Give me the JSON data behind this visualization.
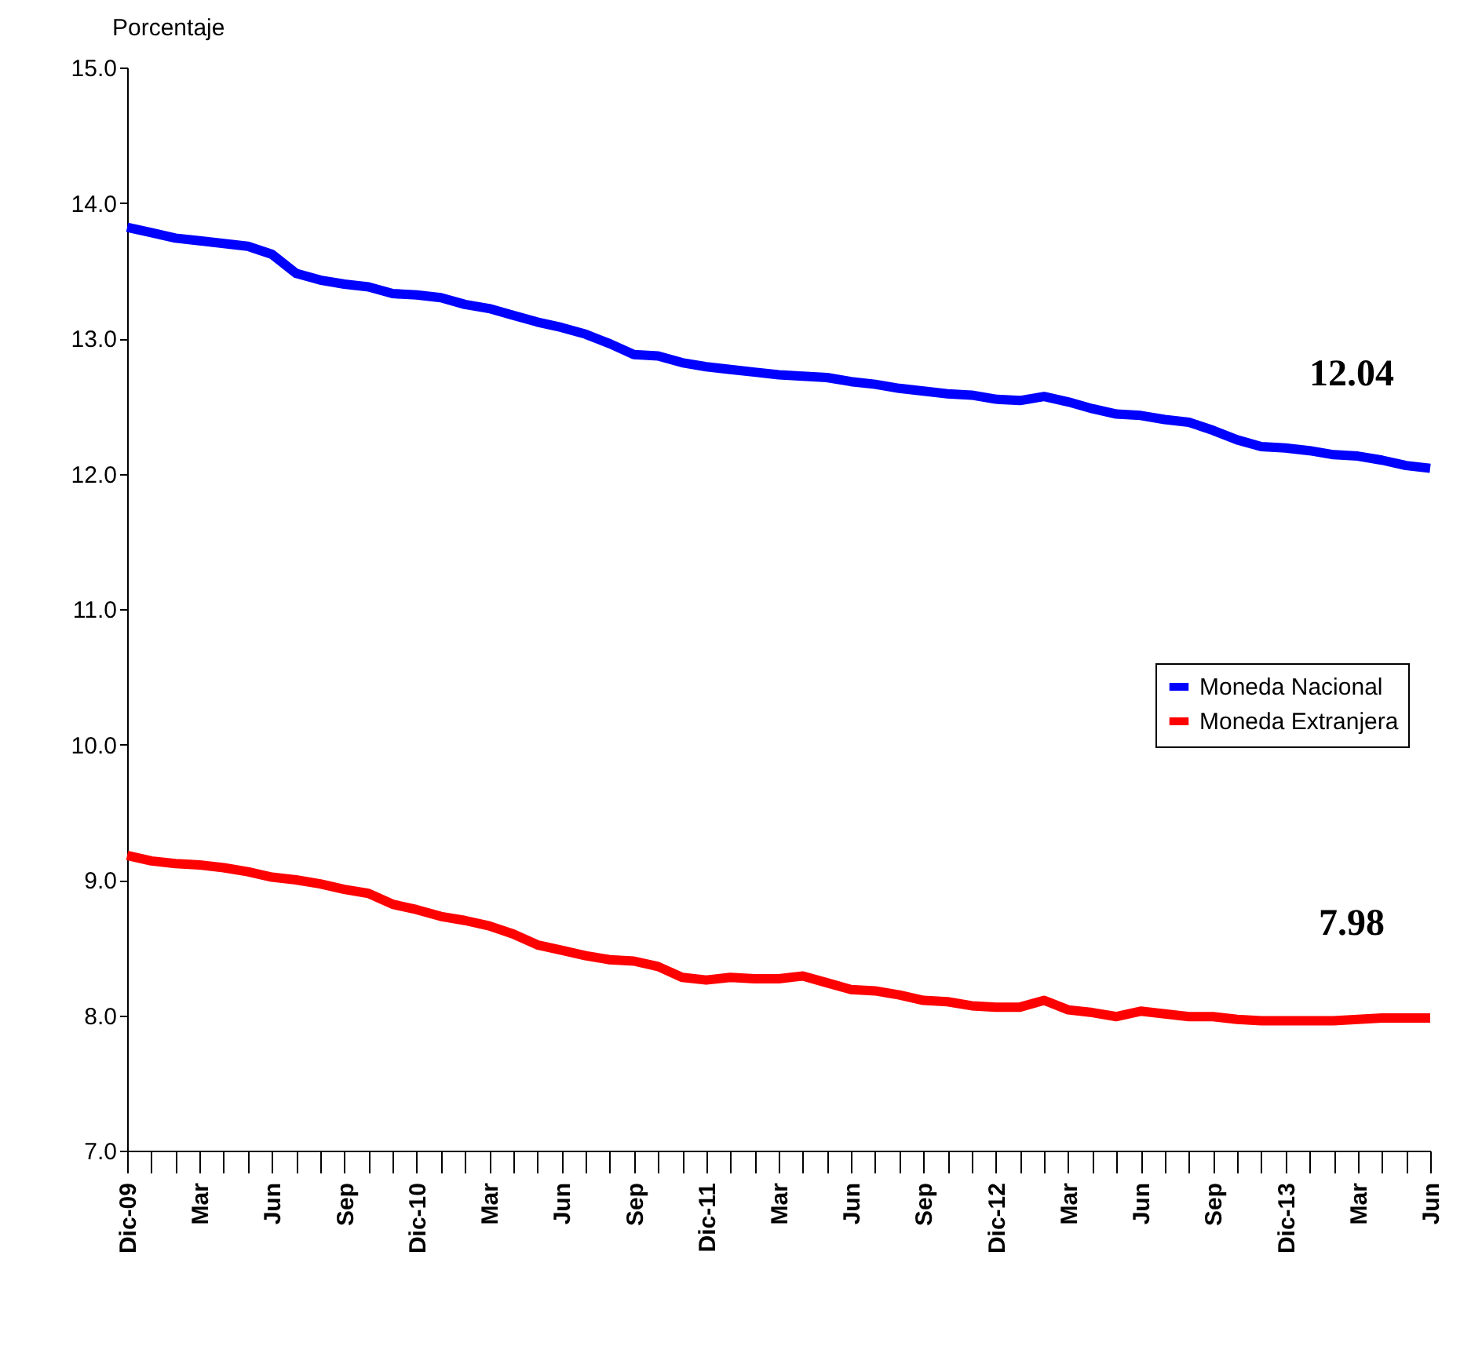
{
  "chart_data": {
    "type": "line",
    "ylabel": "Porcentaje",
    "categories": [
      "Dic-09",
      null,
      null,
      "Mar",
      null,
      null,
      "Jun",
      null,
      null,
      "Sep",
      null,
      null,
      "Dic-10",
      null,
      null,
      "Mar",
      null,
      null,
      "Jun",
      null,
      null,
      "Sep",
      null,
      null,
      "Dic-11",
      null,
      null,
      "Mar",
      null,
      null,
      "Jun",
      null,
      null,
      "Sep",
      null,
      null,
      "Dic-12",
      null,
      null,
      "Mar",
      null,
      null,
      "Jun",
      null,
      null,
      "Sep",
      null,
      null,
      "Dic-13",
      null,
      null,
      "Mar",
      null,
      null,
      "Jun"
    ],
    "ylim": [
      7,
      15
    ],
    "yticks": [
      {
        "value": 7,
        "label": "7.0"
      },
      {
        "value": 8,
        "label": "8.0"
      },
      {
        "value": 9,
        "label": "9.0"
      },
      {
        "value": 10,
        "label": "10.0"
      },
      {
        "value": 11,
        "label": "11.0"
      },
      {
        "value": 12,
        "label": "12.0"
      },
      {
        "value": 13,
        "label": "13.0"
      },
      {
        "value": 14,
        "label": "14.0"
      },
      {
        "value": 15,
        "label": "15.0"
      }
    ],
    "grid": false,
    "legend": "right",
    "marker": "none",
    "line_style": "solid",
    "series": [
      {
        "name": "Moneda Nacional",
        "color": "#0000ff",
        "values": [
          13.82,
          13.78,
          13.74,
          13.72,
          13.7,
          13.68,
          13.62,
          13.48,
          13.43,
          13.4,
          13.38,
          13.33,
          13.32,
          13.3,
          13.25,
          13.22,
          13.17,
          13.12,
          13.08,
          13.03,
          12.96,
          12.88,
          12.87,
          12.82,
          12.79,
          12.77,
          12.75,
          12.73,
          12.72,
          12.71,
          12.68,
          12.66,
          12.63,
          12.61,
          12.59,
          12.58,
          12.55,
          12.54,
          12.57,
          12.53,
          12.48,
          12.44,
          12.43,
          12.4,
          12.38,
          12.32,
          12.25,
          12.2,
          12.19,
          12.17,
          12.14,
          12.13,
          12.1,
          12.06,
          12.04
        ],
        "value_labels": [
          null,
          null,
          null,
          null,
          null,
          null,
          null,
          null,
          null,
          null,
          null,
          null,
          null,
          null,
          null,
          null,
          null,
          null,
          null,
          null,
          null,
          null,
          null,
          null,
          null,
          null,
          null,
          null,
          null,
          null,
          null,
          null,
          null,
          null,
          null,
          null,
          null,
          null,
          null,
          null,
          null,
          null,
          null,
          null,
          null,
          null,
          null,
          null,
          null,
          null,
          null,
          null,
          null,
          null,
          "12.04"
        ]
      },
      {
        "name": "Moneda Extranjera",
        "color": "#ff0000",
        "values": [
          9.18,
          9.14,
          9.12,
          9.11,
          9.09,
          9.06,
          9.02,
          9.0,
          8.97,
          8.93,
          8.9,
          8.82,
          8.78,
          8.73,
          8.7,
          8.66,
          8.6,
          8.52,
          8.48,
          8.44,
          8.41,
          8.4,
          8.36,
          8.28,
          8.26,
          8.28,
          8.27,
          8.27,
          8.29,
          8.24,
          8.19,
          8.18,
          8.15,
          8.11,
          8.1,
          8.07,
          8.06,
          8.06,
          8.11,
          8.04,
          8.02,
          7.99,
          8.03,
          8.01,
          7.99,
          7.99,
          7.97,
          7.96,
          7.96,
          7.96,
          7.96,
          7.97,
          7.98,
          7.98,
          7.98
        ],
        "value_labels": [
          null,
          null,
          null,
          null,
          null,
          null,
          null,
          null,
          null,
          null,
          null,
          null,
          null,
          null,
          null,
          null,
          null,
          null,
          null,
          null,
          null,
          null,
          null,
          null,
          null,
          null,
          null,
          null,
          null,
          null,
          null,
          null,
          null,
          null,
          null,
          null,
          null,
          null,
          null,
          null,
          null,
          null,
          null,
          null,
          null,
          null,
          null,
          null,
          null,
          null,
          null,
          null,
          null,
          null,
          "7.98"
        ]
      }
    ]
  }
}
